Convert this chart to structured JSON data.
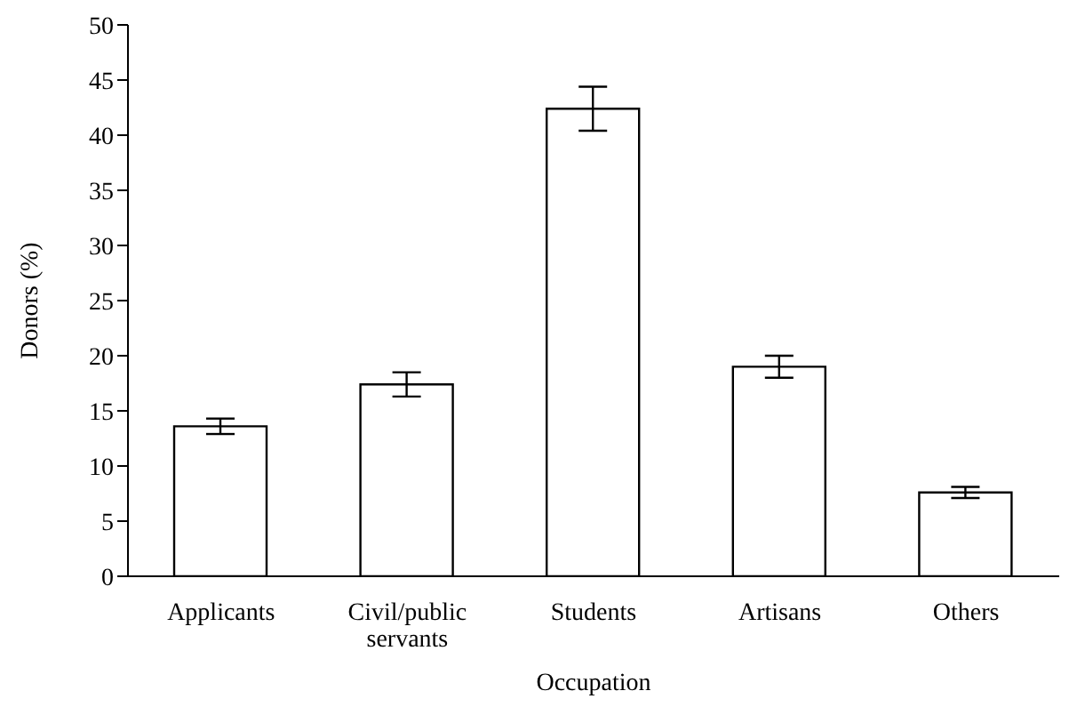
{
  "chart_data": {
    "type": "bar",
    "xlabel": "Occupation",
    "ylabel": "Donors (%)",
    "categories": [
      "Applicants",
      "Civil/public servants",
      "Students",
      "Artisans",
      "Others"
    ],
    "values": [
      13.6,
      17.4,
      42.4,
      19.0,
      7.6
    ],
    "errors": [
      0.7,
      1.1,
      2.0,
      1.0,
      0.5
    ],
    "color": "#ffffff",
    "ylim": [
      0,
      50
    ],
    "yticks": [
      0,
      5,
      10,
      15,
      20,
      25,
      30,
      35,
      40,
      45,
      50
    ],
    "grid": false
  }
}
